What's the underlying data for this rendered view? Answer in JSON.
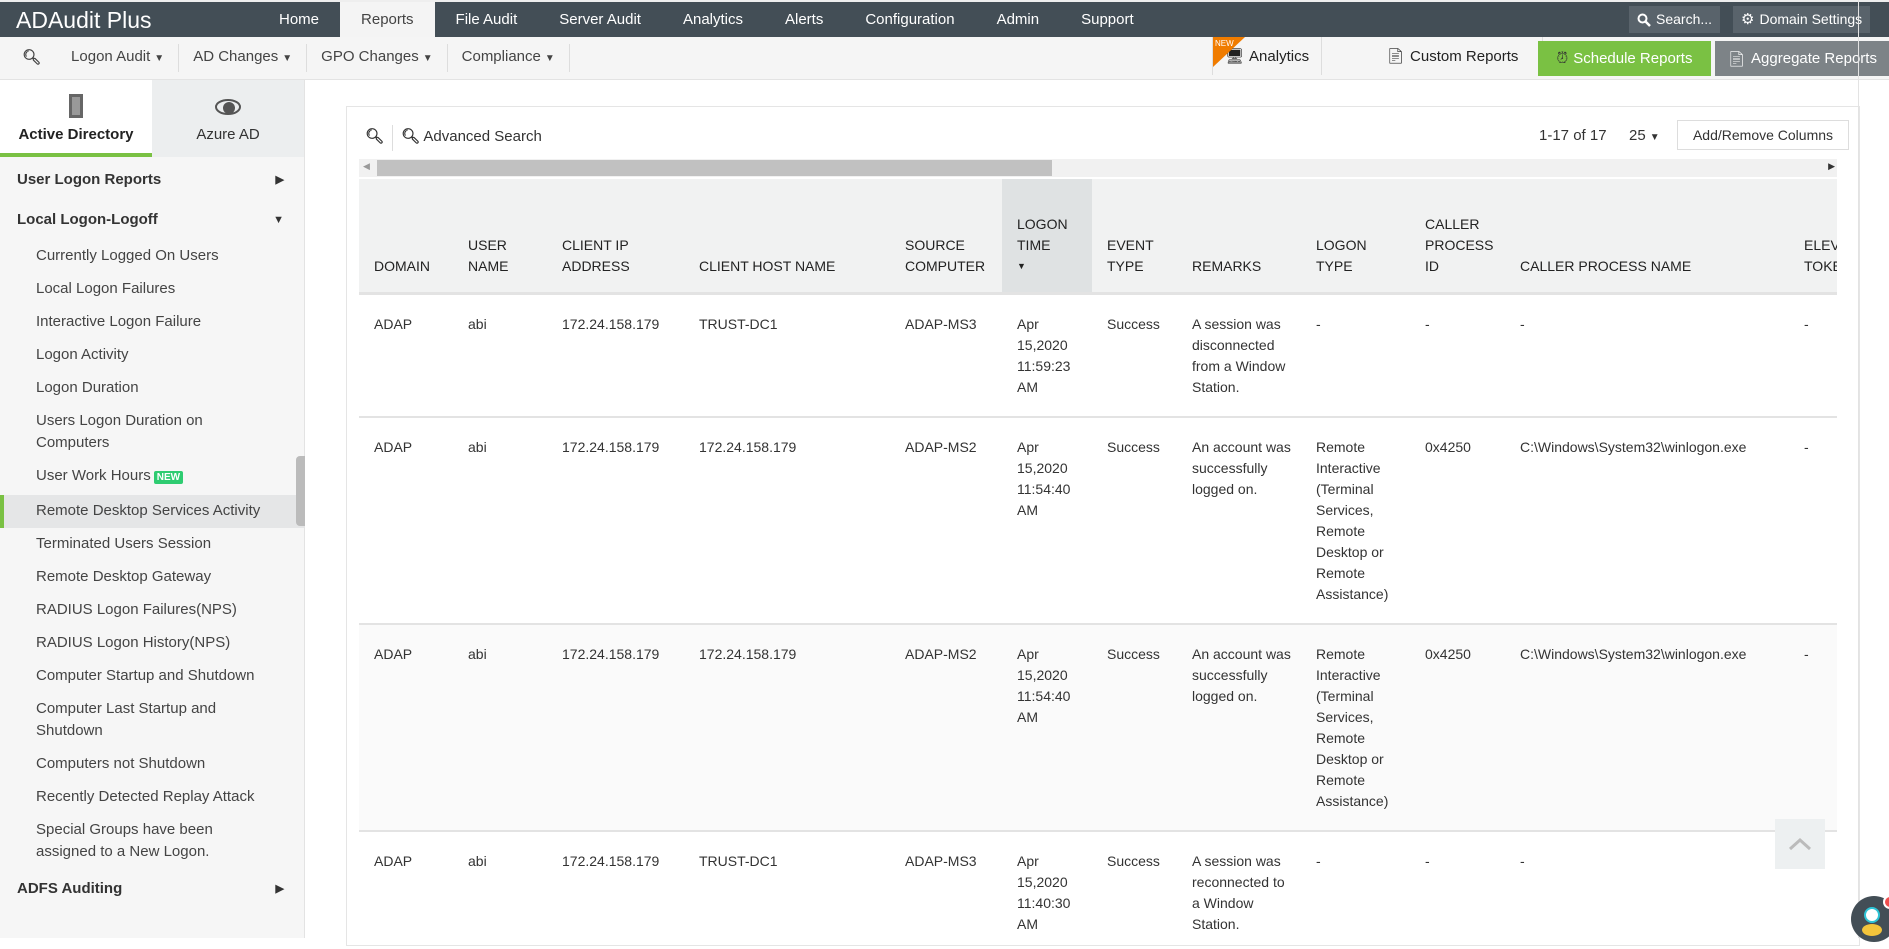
{
  "app": {
    "title": "ADAudit Plus"
  },
  "nav": {
    "tabs": [
      "Home",
      "Reports",
      "File Audit",
      "Server Audit",
      "Analytics",
      "Alerts",
      "Configuration",
      "Admin",
      "Support"
    ],
    "active": "Reports",
    "search": "Search...",
    "domain_settings": "Domain Settings"
  },
  "submenu": {
    "items": [
      "Logon Audit",
      "AD Changes",
      "GPO Changes",
      "Compliance"
    ],
    "analytics": "Analytics",
    "analytics_badge": "NEW",
    "custom_reports": "Custom Reports",
    "schedule_reports": "Schedule Reports",
    "aggregate_reports": "Aggregate Reports"
  },
  "colors": {
    "accent_green": "#7ac143",
    "topbar": "#434e56",
    "new_badge": "#f07c00"
  },
  "sidebar": {
    "tabs": [
      "Active Directory",
      "Azure AD"
    ],
    "groups": [
      {
        "label": "User Logon Reports"
      },
      {
        "label": "Local Logon-Logoff"
      },
      {
        "label": "ADFS Auditing"
      }
    ],
    "items": [
      "Currently Logged On Users",
      "Local Logon Failures",
      "Interactive Logon Failure",
      "Logon Activity",
      "Logon Duration",
      "Users Logon Duration on Computers",
      "User Work Hours",
      "Remote Desktop Services Activity",
      "Terminated Users Session",
      "Remote Desktop Gateway",
      "RADIUS Logon Failures(NPS)",
      "RADIUS Logon History(NPS)",
      "Computer Startup and Shutdown",
      "Computer Last Startup and Shutdown",
      "Computers not Shutdown",
      "Recently Detected Replay Attack",
      "Special Groups have been assigned to a New Logon."
    ],
    "new_badge": "NEW",
    "active_item": "Remote Desktop Services Activity"
  },
  "toolbar": {
    "advanced_search": "Advanced Search",
    "pagination": "1-17 of 17",
    "page_size": "25",
    "add_remove_columns": "Add/Remove Columns"
  },
  "table": {
    "columns": [
      "Domain",
      "User Name",
      "Client IP Address",
      "Client Host Name",
      "Source Computer",
      "Logon Time",
      "Event Type",
      "Remarks",
      "Logon Type",
      "Caller Process ID",
      "Caller Process Name",
      "Elevated Token"
    ],
    "sorted_column": "Logon Time",
    "rows": [
      [
        "ADAP",
        "abi",
        "172.24.158.179",
        "TRUST-DC1",
        "ADAP-MS3",
        "Apr 15,2020 11:59:23 AM",
        "Success",
        "A session was disconnected from a Window Station.",
        "-",
        "-",
        "-",
        "-"
      ],
      [
        "ADAP",
        "abi",
        "172.24.158.179",
        "172.24.158.179",
        "ADAP-MS2",
        "Apr 15,2020 11:54:40 AM",
        "Success",
        "An account was successfully logged on.",
        "Remote Interactive (Terminal Services, Remote Desktop or Remote Assistance)",
        "0x4250",
        "C:\\Windows\\System32\\winlogon.exe",
        "-"
      ],
      [
        "ADAP",
        "abi",
        "172.24.158.179",
        "172.24.158.179",
        "ADAP-MS2",
        "Apr 15,2020 11:54:40 AM",
        "Success",
        "An account was successfully logged on.",
        "Remote Interactive (Terminal Services, Remote Desktop or Remote Assistance)",
        "0x4250",
        "C:\\Windows\\System32\\winlogon.exe",
        "-"
      ],
      [
        "ADAP",
        "abi",
        "172.24.158.179",
        "TRUST-DC1",
        "ADAP-MS3",
        "Apr 15,2020 11:40:30 AM",
        "Success",
        "A session was reconnected to a Window Station.",
        "-",
        "-",
        "-",
        "-"
      ]
    ]
  }
}
